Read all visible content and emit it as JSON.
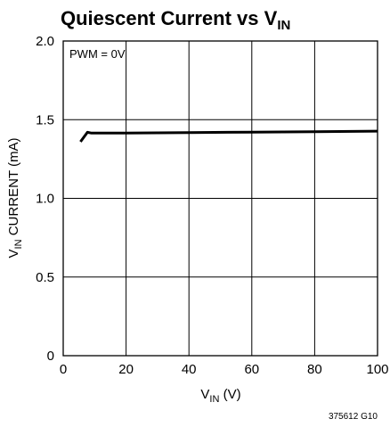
{
  "chart_data": {
    "type": "line",
    "title": {
      "main": "Quiescent Current vs V",
      "sub": "IN"
    },
    "xlabel": {
      "main": "V",
      "sub": "IN",
      "suffix": " (V)"
    },
    "ylabel": {
      "main": "V",
      "sub": "IN",
      "suffix": " CURRENT (mA)"
    },
    "xlim": [
      0,
      100
    ],
    "ylim": [
      0,
      2.0
    ],
    "x_ticks": [
      0,
      20,
      40,
      60,
      80,
      100
    ],
    "x_tick_labels": [
      "0",
      "20",
      "40",
      "60",
      "80",
      "100"
    ],
    "y_ticks": [
      0,
      0.5,
      1.0,
      1.5,
      2.0
    ],
    "y_tick_labels": [
      "0",
      "0.5",
      "1.0",
      "1.5",
      "2.0"
    ],
    "grid": true,
    "annotation": "PWM = 0V",
    "series": [
      {
        "x": [
          5.5,
          7.7,
          9,
          20,
          40,
          60,
          80,
          100
        ],
        "y": [
          1.36,
          1.42,
          1.415,
          1.415,
          1.418,
          1.421,
          1.424,
          1.427
        ]
      }
    ],
    "colors": {
      "line": "#000000",
      "grid": "#000000",
      "frame": "#000000"
    }
  },
  "figure_code": "375612 G10"
}
